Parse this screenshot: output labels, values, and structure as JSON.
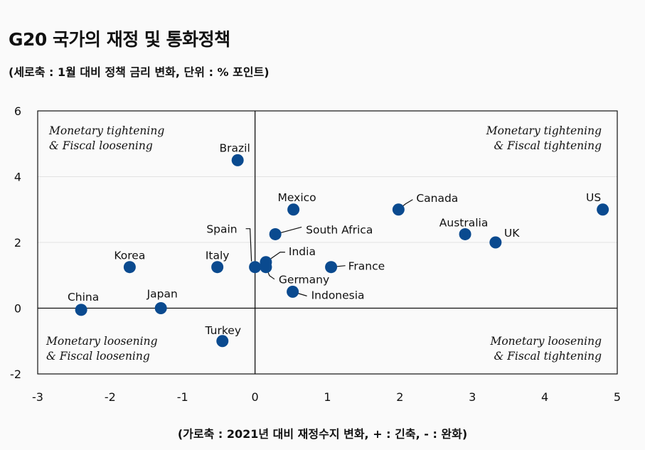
{
  "title": "G20 국가의 재정 및 통화정책",
  "subtitle": "(세로축 : 1월 대비 정책 금리 변화, 단위 : % 포인트)",
  "xcaption": "(가로축 : 2021년 대비 재정수지 변화, + : 긴축, - : 완화)",
  "colors": {
    "marker": "#0a4a8f",
    "axis": "#111111"
  },
  "chart_data": {
    "type": "scatter",
    "xlim": [
      -3,
      5
    ],
    "ylim": [
      -2,
      6
    ],
    "x_ticks": [
      -3,
      -2,
      -1,
      0,
      1,
      2,
      3,
      4,
      5
    ],
    "y_ticks": [
      -2,
      0,
      2,
      4,
      6
    ],
    "grid": "horizontal",
    "quadrant_labels": {
      "top_left": [
        "Monetary tightening",
        "& Fiscal loosening"
      ],
      "top_right": [
        "Monetary tightening",
        "& Fiscal tightening"
      ],
      "bottom_left": [
        "Monetary loosening",
        "& Fiscal loosening"
      ],
      "bottom_right": [
        "Monetary loosening",
        "& Fiscal tightening"
      ]
    },
    "points": [
      {
        "name": "US",
        "x": 4.8,
        "y": 3.0
      },
      {
        "name": "Canada",
        "x": 1.98,
        "y": 3.0
      },
      {
        "name": "Australia",
        "x": 2.9,
        "y": 2.25
      },
      {
        "name": "UK",
        "x": 3.32,
        "y": 2.0
      },
      {
        "name": "Mexico",
        "x": 0.53,
        "y": 3.0
      },
      {
        "name": "South Africa",
        "x": 0.28,
        "y": 2.25
      },
      {
        "name": "Brazil",
        "x": -0.24,
        "y": 4.5
      },
      {
        "name": "India",
        "x": 0.15,
        "y": 1.4
      },
      {
        "name": "France",
        "x": 1.05,
        "y": 1.25
      },
      {
        "name": "Germany",
        "x": 0.15,
        "y": 1.25
      },
      {
        "name": "Spain",
        "x": 0.0,
        "y": 1.25
      },
      {
        "name": "Indonesia",
        "x": 0.52,
        "y": 0.5
      },
      {
        "name": "Italy",
        "x": -0.52,
        "y": 1.25
      },
      {
        "name": "Korea",
        "x": -1.73,
        "y": 1.25
      },
      {
        "name": "Japan",
        "x": -1.3,
        "y": 0.0
      },
      {
        "name": "China",
        "x": -2.4,
        "y": -0.05
      },
      {
        "name": "Turkey",
        "x": -0.45,
        "y": -1.0
      }
    ]
  }
}
